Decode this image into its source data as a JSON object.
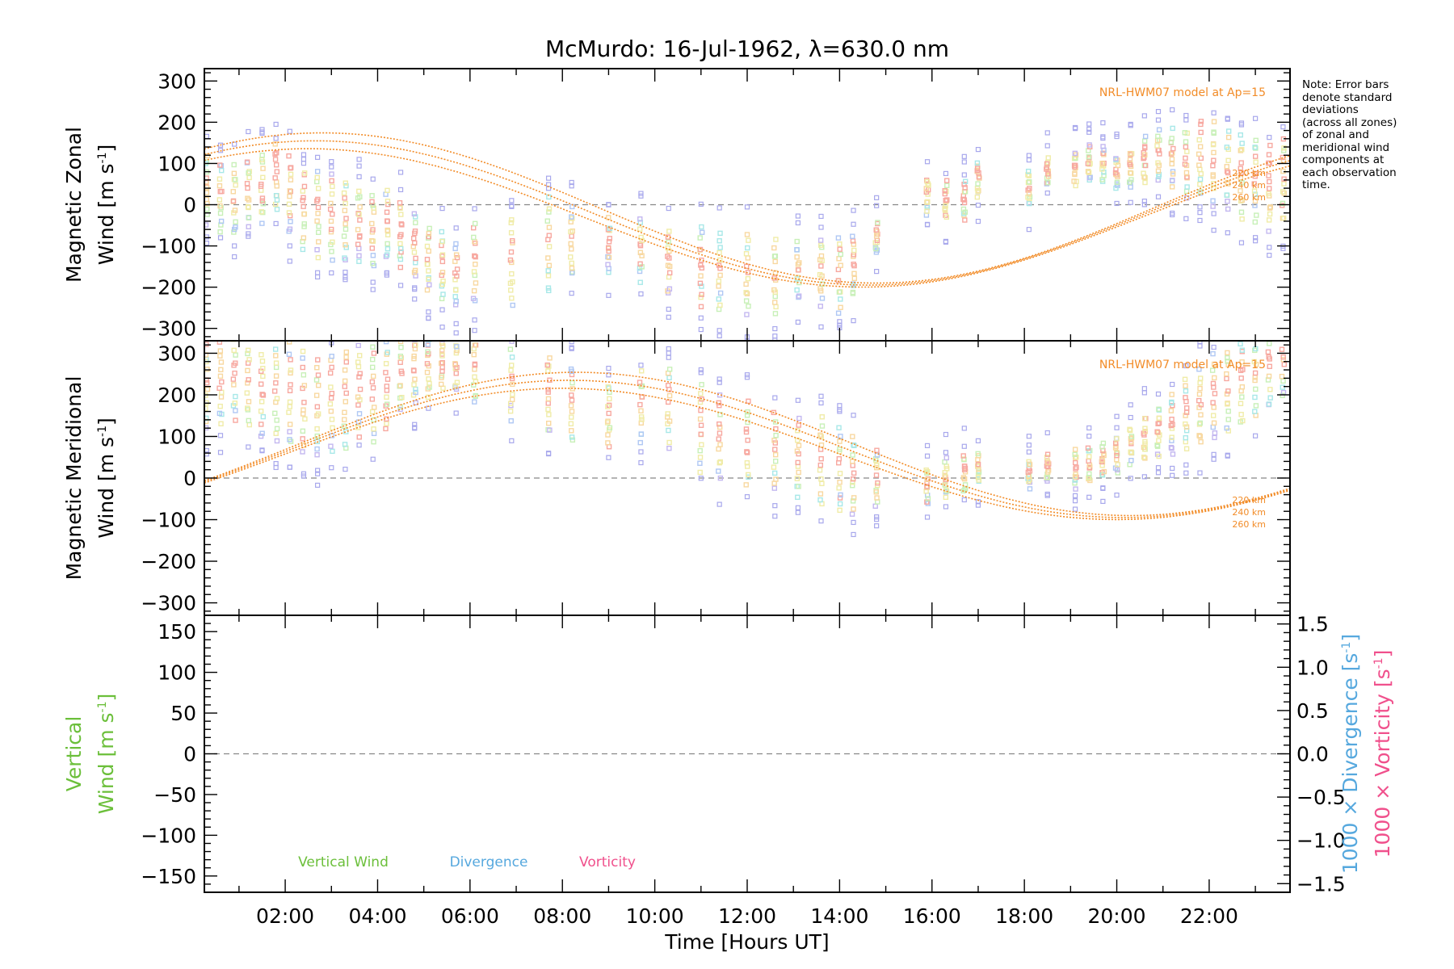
{
  "title": "McMurdo: 16-Jul-1962, λ=630.0 nm",
  "note_lines": [
    "Note: Error bars",
    "denote standard",
    "deviations",
    "(across all zones)",
    "of zonal and",
    "meridional wind",
    "components at",
    "each observation",
    "time."
  ],
  "colors": {
    "model": "#f28c28",
    "vertical": "#6bbf3a",
    "divergence": "#56a8de",
    "vorticity": "#f0508c",
    "zero_line": "#888888",
    "zone_palette": [
      "#f7a8a0",
      "#f8d8a0",
      "#f0eca8",
      "#c8f0b8",
      "#a8e8e8",
      "#b0c8f4",
      "#c4b8f0"
    ]
  },
  "chart_data": [
    {
      "id": "zonal",
      "type": "scatter",
      "ylabel_line1": "Magnetic Zonal",
      "ylabel_line2": "Wind [m s",
      "ylabel_sup": "-1",
      "ylabel_tail": "]",
      "ylim": [
        -330,
        330
      ],
      "yticks": [
        -300,
        -200,
        -100,
        0,
        100,
        200,
        300
      ],
      "xlim": [
        0.25,
        23.75
      ],
      "model_label": "NRL-HWM07 model at Ap=15",
      "altitude_labels": [
        "220 km",
        "240 km",
        "260 km"
      ],
      "model_fit": {
        "mean": -20,
        "amp": 175,
        "peak_hour": 2.5
      },
      "obs_times": [
        0.3,
        0.6,
        0.9,
        1.2,
        1.5,
        1.8,
        2.1,
        2.4,
        2.7,
        3.0,
        3.3,
        3.6,
        3.9,
        4.2,
        4.5,
        4.8,
        5.1,
        5.4,
        5.7,
        6.1,
        6.9,
        7.7,
        8.2,
        9.0,
        9.7,
        10.3,
        11.0,
        11.4,
        12.0,
        12.6,
        13.1,
        13.6,
        14.0,
        14.3,
        14.8,
        15.9,
        16.3,
        16.7,
        17.0,
        18.1,
        18.5,
        19.1,
        19.4,
        19.7,
        20.0,
        20.3,
        20.6,
        20.9,
        21.2,
        21.5,
        21.8,
        22.1,
        22.4,
        22.7,
        23.0,
        23.3,
        23.6
      ],
      "obs_centers": [
        40,
        20,
        10,
        30,
        40,
        60,
        20,
        -10,
        -20,
        -30,
        -40,
        -50,
        -60,
        -50,
        -70,
        -100,
        -130,
        -150,
        -170,
        -140,
        -140,
        -100,
        -90,
        -100,
        -110,
        -140,
        -150,
        -160,
        -170,
        -180,
        -160,
        -160,
        -170,
        -150,
        -80,
        20,
        10,
        10,
        60,
        40,
        80,
        90,
        100,
        100,
        80,
        90,
        110,
        120,
        110,
        100,
        110,
        100,
        80,
        70,
        60,
        40,
        60
      ],
      "obs_spreads": [
        80,
        80,
        80,
        80,
        80,
        80,
        90,
        90,
        100,
        100,
        100,
        90,
        90,
        80,
        80,
        80,
        80,
        80,
        80,
        100,
        110,
        110,
        80,
        60,
        70,
        80,
        90,
        90,
        100,
        90,
        70,
        80,
        90,
        70,
        40,
        40,
        40,
        40,
        40,
        40,
        30,
        40,
        40,
        40,
        40,
        40,
        50,
        60,
        70,
        80,
        90,
        100,
        90,
        100,
        100,
        100,
        100
      ]
    },
    {
      "id": "meridional",
      "type": "scatter",
      "ylabel_line1": "Magnetic Meridional",
      "ylabel_line2": "Wind [m s",
      "ylabel_sup": "-1",
      "ylabel_tail": "]",
      "ylim": [
        -330,
        330
      ],
      "yticks": [
        -300,
        -200,
        -100,
        0,
        100,
        200,
        300
      ],
      "xlim": [
        0.25,
        23.75
      ],
      "model_label": "NRL-HWM07 model at Ap=15",
      "altitude_labels": [
        "220 km",
        "240 km",
        "260 km"
      ],
      "model_fit": {
        "mean": 70,
        "amp": 165,
        "peak_hour": 8.0
      },
      "obs_times": [
        0.3,
        0.6,
        0.9,
        1.2,
        1.5,
        1.8,
        2.1,
        2.4,
        2.7,
        3.0,
        3.3,
        3.6,
        3.9,
        4.2,
        4.5,
        4.8,
        5.1,
        5.4,
        5.7,
        6.1,
        6.9,
        7.7,
        8.2,
        9.0,
        9.7,
        10.3,
        11.0,
        11.4,
        12.0,
        12.6,
        13.1,
        13.6,
        14.0,
        14.3,
        14.8,
        15.9,
        16.3,
        16.7,
        17.0,
        18.1,
        18.5,
        19.1,
        19.4,
        19.7,
        20.0,
        20.3,
        20.6,
        20.9,
        21.2,
        21.5,
        21.8,
        22.1,
        22.4,
        22.7,
        23.0,
        23.3,
        23.6
      ],
      "obs_centers": [
        220,
        230,
        240,
        230,
        200,
        200,
        200,
        180,
        170,
        180,
        190,
        210,
        200,
        220,
        250,
        260,
        270,
        280,
        270,
        260,
        230,
        200,
        180,
        150,
        170,
        170,
        120,
        100,
        80,
        60,
        50,
        40,
        20,
        10,
        0,
        -20,
        0,
        10,
        20,
        10,
        20,
        20,
        30,
        40,
        60,
        80,
        100,
        110,
        130,
        150,
        170,
        190,
        210,
        230,
        250,
        270,
        290
      ],
      "obs_spreads": [
        100,
        100,
        100,
        100,
        100,
        110,
        120,
        120,
        120,
        120,
        120,
        110,
        110,
        100,
        90,
        80,
        70,
        60,
        60,
        80,
        90,
        90,
        90,
        70,
        80,
        90,
        100,
        100,
        100,
        90,
        90,
        100,
        100,
        90,
        70,
        40,
        40,
        40,
        30,
        30,
        30,
        40,
        40,
        40,
        40,
        40,
        50,
        60,
        70,
        80,
        90,
        100,
        100,
        100,
        100,
        100,
        100
      ]
    },
    {
      "id": "vertical",
      "type": "line",
      "ylabel_line1": "Vertical",
      "ylabel_line2": "Wind [m s",
      "ylabel_sup": "-1",
      "ylabel_tail": "]",
      "ylim": [
        -170,
        170
      ],
      "yticks": [
        -150,
        -100,
        -50,
        0,
        50,
        100,
        150
      ],
      "right_ylim": [
        -1.6,
        1.6
      ],
      "right_yticks": [
        -1.5,
        -1.0,
        -0.5,
        0.0,
        0.5,
        1.0,
        1.5
      ],
      "right_ylabel1": "1000 × Divergence [s",
      "right_ylabel2": "1000 × Vorticity [s",
      "right_ylabel_sup": "-1",
      "right_ylabel_tail": "]",
      "legend": [
        "Vertical Wind",
        "Divergence",
        "Vorticity"
      ],
      "xlim": [
        0.25,
        23.75
      ],
      "xticks": [
        2,
        4,
        6,
        8,
        10,
        12,
        14,
        16,
        18,
        20,
        22
      ],
      "xtick_labels": [
        "02:00",
        "04:00",
        "06:00",
        "08:00",
        "10:00",
        "12:00",
        "14:00",
        "16:00",
        "18:00",
        "20:00",
        "22:00"
      ],
      "xlabel": "Time [Hours UT]",
      "series": []
    }
  ]
}
